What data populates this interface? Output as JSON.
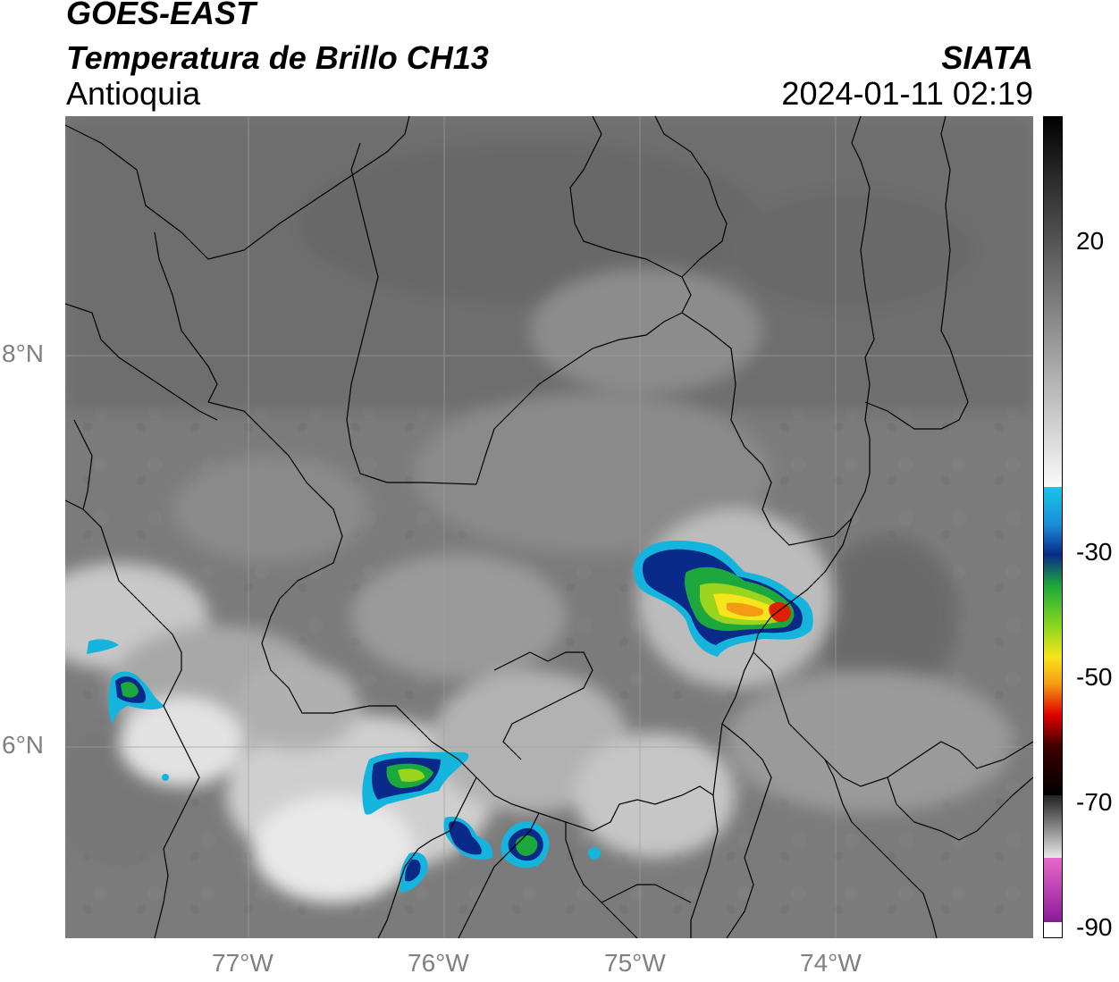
{
  "header": {
    "satellite": "GOES-EAST",
    "product": "Temperatura de Brillo CH13",
    "region": "Antioquia",
    "organization": "SIATA",
    "datetime": "2024-01-11 02:19"
  },
  "axes": {
    "lat_ticks": [
      {
        "label": "8°N",
        "value": 8
      },
      {
        "label": "6°N",
        "value": 6
      }
    ],
    "lon_ticks": [
      {
        "label": "77°W",
        "value": -77
      },
      {
        "label": "76°W",
        "value": -76
      },
      {
        "label": "75°W",
        "value": -75
      },
      {
        "label": "74°W",
        "value": -74
      }
    ]
  },
  "colorbar": {
    "ticks": [
      "20",
      "-30",
      "-50",
      "-70",
      "-90"
    ],
    "colors": [
      "#f4f4f4",
      "#16c8e8",
      "#0a2a8a",
      "#1ca83c",
      "#f6e51a",
      "#e00000",
      "#000000",
      "#d060c0"
    ]
  }
}
